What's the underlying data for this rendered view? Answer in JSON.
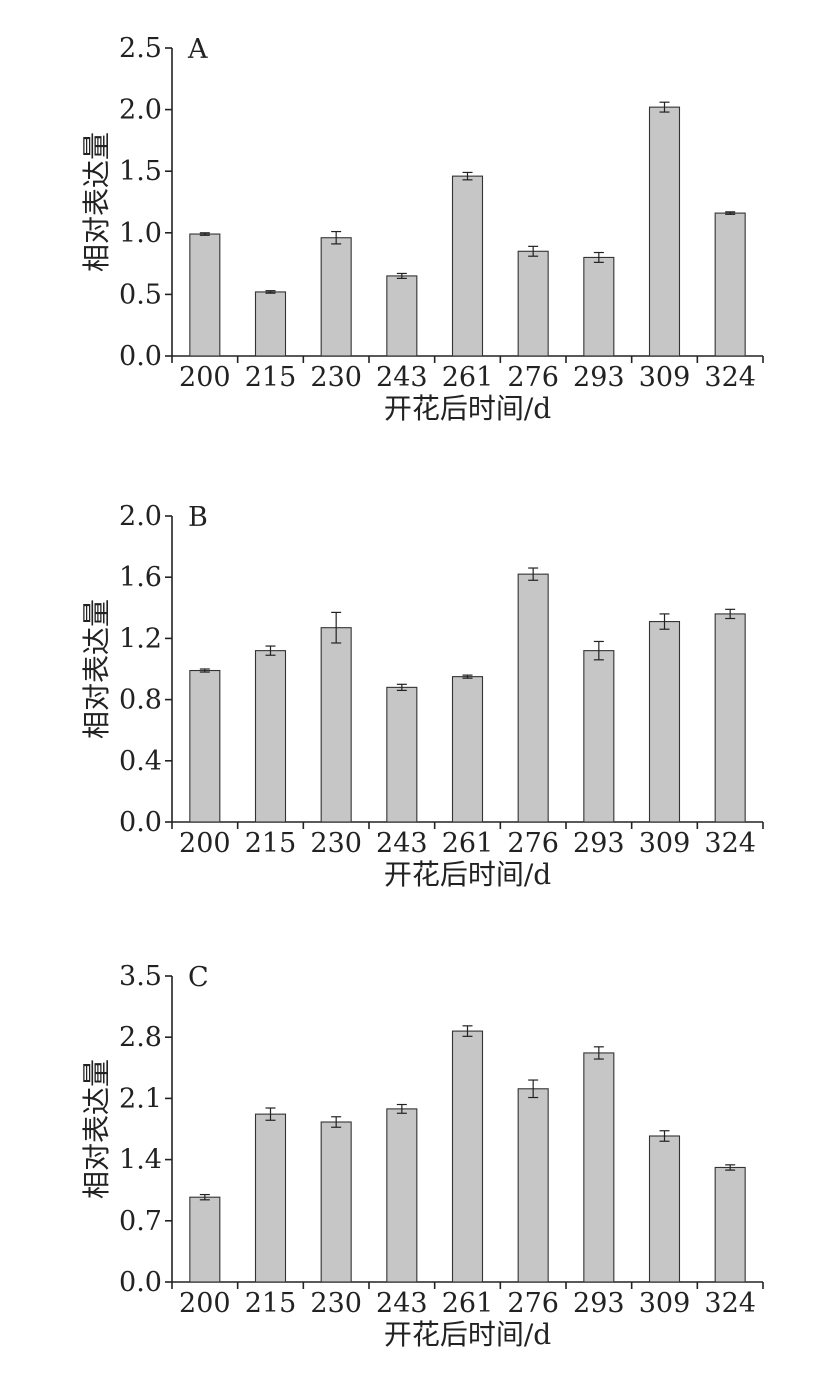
{
  "colors": {
    "bar_fill": "#c6c6c6",
    "bar_stroke": "#333333",
    "axis": "#222222"
  },
  "chart_data": [
    {
      "type": "bar",
      "panel_label": "A",
      "categories": [
        "200",
        "215",
        "230",
        "243",
        "261",
        "276",
        "293",
        "309",
        "324"
      ],
      "values": [
        0.99,
        0.52,
        0.96,
        0.65,
        1.46,
        0.85,
        0.8,
        2.02,
        1.16
      ],
      "errors": [
        0.01,
        0.01,
        0.05,
        0.02,
        0.03,
        0.04,
        0.04,
        0.04,
        0.01
      ],
      "ylim": [
        0,
        2.5
      ],
      "yticks": [
        "0.0",
        "0.5",
        "1.0",
        "1.5",
        "2.0",
        "2.5"
      ],
      "xlabel": "开花后时间/d",
      "ylabel": "相对表达量"
    },
    {
      "type": "bar",
      "panel_label": "B",
      "categories": [
        "200",
        "215",
        "230",
        "243",
        "261",
        "276",
        "293",
        "309",
        "324"
      ],
      "values": [
        0.99,
        1.12,
        1.27,
        0.88,
        0.95,
        1.62,
        1.12,
        1.31,
        1.36
      ],
      "errors": [
        0.01,
        0.03,
        0.1,
        0.02,
        0.01,
        0.04,
        0.06,
        0.05,
        0.03
      ],
      "ylim": [
        0,
        2.0
      ],
      "yticks": [
        "0.0",
        "0.4",
        "0.8",
        "1.2",
        "1.6",
        "2.0"
      ],
      "xlabel": "开花后时间/d",
      "ylabel": "相对表达量"
    },
    {
      "type": "bar",
      "panel_label": "C",
      "categories": [
        "200",
        "215",
        "230",
        "243",
        "261",
        "276",
        "293",
        "309",
        "324"
      ],
      "values": [
        0.97,
        1.92,
        1.83,
        1.98,
        2.87,
        2.21,
        2.62,
        1.67,
        1.31
      ],
      "errors": [
        0.03,
        0.07,
        0.06,
        0.05,
        0.06,
        0.1,
        0.07,
        0.06,
        0.03
      ],
      "ylim": [
        0,
        3.5
      ],
      "yticks": [
        "0.0",
        "0.7",
        "1.4",
        "2.1",
        "2.8",
        "3.5"
      ],
      "xlabel": "开花后时间/d",
      "ylabel": "相对表达量"
    }
  ]
}
